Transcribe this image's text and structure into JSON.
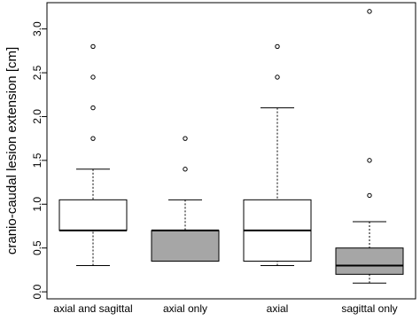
{
  "chart_data": {
    "type": "box",
    "y_label": "cranio-caudal lesion extension [cm]",
    "categories": [
      "axial and sagittal",
      "axial only",
      "axial",
      "sagittal only"
    ],
    "whisker_low": [
      0.3,
      0.35,
      0.3,
      0.1
    ],
    "q1": [
      0.7,
      0.35,
      0.35,
      0.2
    ],
    "median": [
      0.7,
      0.7,
      0.7,
      0.3
    ],
    "q3": [
      1.05,
      0.7,
      1.05,
      0.5
    ],
    "whisker_high": [
      1.4,
      1.05,
      2.1,
      0.8
    ],
    "outliers": [
      [
        1.75,
        2.1,
        2.45,
        2.8
      ],
      [
        1.4,
        1.75
      ],
      [
        2.45,
        2.8
      ],
      [
        1.1,
        1.5,
        3.2
      ]
    ],
    "colors": [
      "#ffffff",
      "#a6a6a6",
      "#ffffff",
      "#a6a6a6"
    ],
    "ylim": [
      -0.08,
      3.3
    ],
    "yticks": [
      {
        "value": 0,
        "label": "0.0"
      },
      {
        "value": 0.5,
        "label": "0.5"
      },
      {
        "value": 1,
        "label": "1.0"
      },
      {
        "value": 1.5,
        "label": "1.5"
      },
      {
        "value": 2,
        "label": "2.0"
      },
      {
        "value": 2.5,
        "label": "2.5"
      },
      {
        "value": 3,
        "label": "3.0"
      }
    ]
  }
}
